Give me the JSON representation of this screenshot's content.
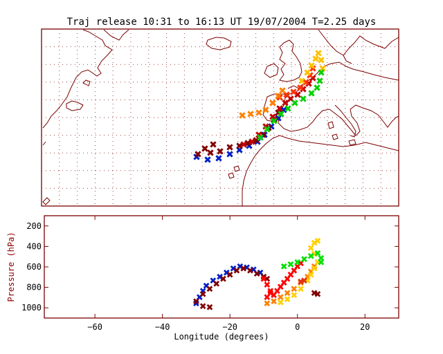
{
  "title": "Traj release 10:31 to 16:13 UT 19/07/2004    T=2.25 days",
  "colors": {
    "frame": "#7a0000",
    "grid_dot": "#a04040",
    "coast": "#7a0000",
    "axis_label": "#8b0000",
    "trajectory_gradient": [
      "#0000c8",
      "#800000",
      "#c00000",
      "#ff0000",
      "#ff6000",
      "#ffa000",
      "#ffd000",
      "#ffff00",
      "#00e000"
    ]
  },
  "map_panel": {
    "type": "map",
    "grid": true,
    "content": "trajectory tracks over North Atlantic / Western Europe with coastline outlines"
  },
  "chart_data": {
    "type": "scatter",
    "xlabel": "Longitude  (degrees)",
    "ylabel": "Pressure  (hPa)",
    "xlim": [
      -75,
      30
    ],
    "ylim": [
      1100,
      100
    ],
    "xticks": [
      -60,
      -40,
      -20,
      0,
      20
    ],
    "xtick_labels": [
      "−60",
      "−40",
      "−20",
      "0",
      "20"
    ],
    "yticks": [
      200,
      400,
      600,
      800,
      1000
    ],
    "ytick_labels": [
      "200",
      "400",
      "600",
      "800",
      "1000"
    ],
    "grid": false,
    "series": [
      {
        "color": "#0020c8",
        "points": [
          [
            -30,
            960
          ],
          [
            -29,
            900
          ],
          [
            -28,
            840
          ],
          [
            -27,
            790
          ],
          [
            -25,
            740
          ],
          [
            -23,
            700
          ],
          [
            -21,
            660
          ],
          [
            -19,
            620
          ],
          [
            -17,
            600
          ],
          [
            -15,
            610
          ],
          [
            -13,
            630
          ],
          [
            -11,
            660
          ]
        ]
      },
      {
        "color": "#800000",
        "points": [
          [
            -30,
            940
          ],
          [
            -28,
            870
          ],
          [
            -26,
            820
          ],
          [
            -24,
            770
          ],
          [
            -22,
            720
          ],
          [
            -20,
            680
          ],
          [
            -18,
            640
          ],
          [
            -16,
            620
          ],
          [
            -14,
            640
          ],
          [
            -12,
            670
          ],
          [
            -10,
            700
          ],
          [
            -9,
            720
          ],
          [
            -28,
            990
          ],
          [
            -26,
            1000
          ]
        ]
      },
      {
        "color": "#ff0000",
        "points": [
          [
            -10,
            720
          ],
          [
            -9,
            780
          ],
          [
            -8,
            840
          ],
          [
            -7,
            880
          ],
          [
            -6,
            840
          ],
          [
            -5,
            800
          ],
          [
            -4,
            760
          ],
          [
            -3,
            720
          ],
          [
            -2,
            680
          ],
          [
            -1,
            640
          ],
          [
            0,
            600
          ],
          [
            1,
            570
          ],
          [
            -9,
            900
          ],
          [
            -8,
            860
          ]
        ]
      },
      {
        "color": "#ff8000",
        "points": [
          [
            -9,
            960
          ],
          [
            -7,
            940
          ],
          [
            -5,
            900
          ],
          [
            -3,
            860
          ],
          [
            -1,
            820
          ],
          [
            1,
            760
          ],
          [
            3,
            700
          ],
          [
            4,
            650
          ],
          [
            5,
            600
          ]
        ]
      },
      {
        "color": "#ffd000",
        "points": [
          [
            -5,
            950
          ],
          [
            -3,
            920
          ],
          [
            -1,
            880
          ],
          [
            1,
            820
          ],
          [
            3,
            740
          ],
          [
            4,
            680
          ],
          [
            5,
            620
          ],
          [
            6,
            560
          ],
          [
            5,
            480
          ],
          [
            4,
            420
          ],
          [
            5,
            370
          ],
          [
            6,
            350
          ]
        ]
      },
      {
        "color": "#00e000",
        "points": [
          [
            -4,
            600
          ],
          [
            -2,
            580
          ],
          [
            0,
            560
          ],
          [
            2,
            530
          ],
          [
            4,
            500
          ],
          [
            6,
            470
          ],
          [
            7,
            520
          ],
          [
            7,
            560
          ]
        ]
      },
      {
        "color": "#e03010",
        "points": [
          [
            1,
            750
          ],
          [
            2,
            740
          ]
        ]
      },
      {
        "color": "#800000",
        "points": [
          [
            5,
            860
          ],
          [
            6,
            870
          ]
        ]
      }
    ]
  }
}
